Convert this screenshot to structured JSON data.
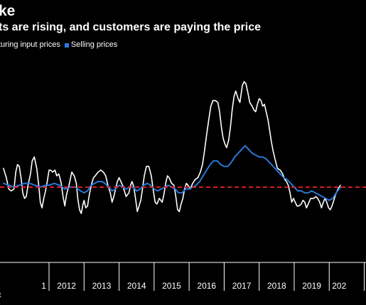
{
  "chart_data": {
    "type": "line",
    "title": "ke",
    "subtitle": "ts are rising, and customers are paying the price",
    "footer": "t",
    "legend_position": "top-left",
    "grid": false,
    "x_ticks": [
      "1",
      "2012",
      "2013",
      "2014",
      "2015",
      "2016",
      "2017",
      "2018",
      "2019",
      "202"
    ],
    "xlim": [
      2010.6,
      2021.05
    ],
    "ylim": [
      -4,
      7
    ],
    "reference_line": {
      "value": 0,
      "color": "#e8202a",
      "style": "dashed"
    },
    "colors": {
      "background": "#000000",
      "input": "#ffffff",
      "selling": "#2a7de1",
      "reference": "#e8202a"
    },
    "series": [
      {
        "name": "turing input prices",
        "color": "#ffffff",
        "points": [
          [
            2010.7,
            1.0
          ],
          [
            2010.78,
            0.5
          ],
          [
            2010.85,
            -0.1
          ],
          [
            2010.92,
            -0.2
          ],
          [
            2011.0,
            -0.1
          ],
          [
            2011.05,
            0.8
          ],
          [
            2011.1,
            1.2
          ],
          [
            2011.15,
            1.1
          ],
          [
            2011.2,
            0.5
          ],
          [
            2011.25,
            -0.3
          ],
          [
            2011.3,
            -0.6
          ],
          [
            2011.35,
            -0.5
          ],
          [
            2011.4,
            0.1
          ],
          [
            2011.47,
            0.7
          ],
          [
            2011.52,
            1.4
          ],
          [
            2011.58,
            1.6
          ],
          [
            2011.65,
            1.0
          ],
          [
            2011.7,
            0.2
          ],
          [
            2011.75,
            -0.8
          ],
          [
            2011.8,
            -1.1
          ],
          [
            2011.85,
            -0.6
          ],
          [
            2011.9,
            -0.2
          ],
          [
            2011.95,
            0.3
          ],
          [
            2012.0,
            0.9
          ],
          [
            2012.05,
            0.9
          ],
          [
            2012.1,
            0.8
          ],
          [
            2012.17,
            0.9
          ],
          [
            2012.22,
            0.6
          ],
          [
            2012.28,
            0.7
          ],
          [
            2012.35,
            0.2
          ],
          [
            2012.4,
            -0.5
          ],
          [
            2012.45,
            -1.0
          ],
          [
            2012.5,
            -0.4
          ],
          [
            2012.57,
            0.1
          ],
          [
            2012.65,
            0.8
          ],
          [
            2012.72,
            0.6
          ],
          [
            2012.78,
            0.2
          ],
          [
            2012.82,
            -0.6
          ],
          [
            2012.87,
            -1.2
          ],
          [
            2012.92,
            -1.4
          ],
          [
            2012.96,
            -1.0
          ],
          [
            2013.0,
            -0.7
          ],
          [
            2013.05,
            -1.1
          ],
          [
            2013.1,
            -1.0
          ],
          [
            2013.15,
            -0.4
          ],
          [
            2013.22,
            0.2
          ],
          [
            2013.27,
            0.5
          ],
          [
            2013.32,
            0.6
          ],
          [
            2013.4,
            0.8
          ],
          [
            2013.48,
            0.9
          ],
          [
            2013.55,
            0.8
          ],
          [
            2013.62,
            0.6
          ],
          [
            2013.68,
            0.1
          ],
          [
            2013.75,
            -0.3
          ],
          [
            2013.8,
            -0.8
          ],
          [
            2013.85,
            -0.5
          ],
          [
            2013.9,
            -0.1
          ],
          [
            2013.95,
            0.3
          ],
          [
            2014.0,
            0.5
          ],
          [
            2014.05,
            0.3
          ],
          [
            2014.1,
            0.1
          ],
          [
            2014.15,
            -0.2
          ],
          [
            2014.2,
            -0.5
          ],
          [
            2014.28,
            -0.3
          ],
          [
            2014.33,
            0.1
          ],
          [
            2014.37,
            0.3
          ],
          [
            2014.42,
            0.0
          ],
          [
            2014.47,
            -0.6
          ],
          [
            2014.52,
            -1.3
          ],
          [
            2014.57,
            -1.0
          ],
          [
            2014.62,
            -0.7
          ],
          [
            2014.66,
            -0.2
          ],
          [
            2014.72,
            0.6
          ],
          [
            2014.78,
            1.1
          ],
          [
            2014.85,
            1.1
          ],
          [
            2014.92,
            0.6
          ],
          [
            2014.97,
            -0.1
          ],
          [
            2015.03,
            -0.8
          ],
          [
            2015.08,
            -0.9
          ],
          [
            2015.15,
            -0.6
          ],
          [
            2015.23,
            -0.8
          ],
          [
            2015.28,
            -0.4
          ],
          [
            2015.33,
            0.2
          ],
          [
            2015.38,
            0.6
          ],
          [
            2015.43,
            0.5
          ],
          [
            2015.5,
            0.2
          ],
          [
            2015.57,
            0.1
          ],
          [
            2015.62,
            -0.5
          ],
          [
            2015.67,
            -1.2
          ],
          [
            2015.72,
            -1.3
          ],
          [
            2015.77,
            -0.9
          ],
          [
            2015.82,
            -0.6
          ],
          [
            2015.87,
            -0.1
          ],
          [
            2015.92,
            0.2
          ],
          [
            2015.97,
            0.1
          ],
          [
            2016.03,
            -0.1
          ],
          [
            2016.1,
            0.2
          ],
          [
            2016.17,
            0.4
          ],
          [
            2016.25,
            0.5
          ],
          [
            2016.32,
            0.8
          ],
          [
            2016.38,
            1.2
          ],
          [
            2016.43,
            1.8
          ],
          [
            2016.5,
            2.8
          ],
          [
            2016.57,
            3.7
          ],
          [
            2016.62,
            4.3
          ],
          [
            2016.68,
            4.6
          ],
          [
            2016.75,
            4.6
          ],
          [
            2016.82,
            4.5
          ],
          [
            2016.87,
            4.0
          ],
          [
            2016.92,
            3.2
          ],
          [
            2016.97,
            2.6
          ],
          [
            2017.02,
            2.3
          ],
          [
            2017.07,
            2.1
          ],
          [
            2017.13,
            2.5
          ],
          [
            2017.18,
            3.2
          ],
          [
            2017.23,
            4.1
          ],
          [
            2017.28,
            4.8
          ],
          [
            2017.33,
            5.1
          ],
          [
            2017.4,
            4.7
          ],
          [
            2017.45,
            4.5
          ],
          [
            2017.52,
            5.4
          ],
          [
            2017.57,
            5.6
          ],
          [
            2017.62,
            5.5
          ],
          [
            2017.68,
            5.0
          ],
          [
            2017.73,
            4.5
          ],
          [
            2017.8,
            4.3
          ],
          [
            2017.85,
            4.1
          ],
          [
            2017.9,
            4.0
          ],
          [
            2017.95,
            4.4
          ],
          [
            2018.0,
            4.7
          ],
          [
            2018.05,
            4.6
          ],
          [
            2018.1,
            4.3
          ],
          [
            2018.15,
            4.4
          ],
          [
            2018.2,
            4.0
          ],
          [
            2018.25,
            3.6
          ],
          [
            2018.3,
            3.0
          ],
          [
            2018.35,
            2.4
          ],
          [
            2018.4,
            1.9
          ],
          [
            2018.45,
            1.5
          ],
          [
            2018.52,
            1.0
          ],
          [
            2018.6,
            0.9
          ],
          [
            2018.67,
            0.7
          ],
          [
            2018.73,
            0.4
          ],
          [
            2018.78,
            0.3
          ],
          [
            2018.83,
            0.1
          ],
          [
            2018.88,
            -0.3
          ],
          [
            2018.93,
            -0.8
          ],
          [
            2018.98,
            -0.6
          ],
          [
            2019.03,
            -0.8
          ],
          [
            2019.08,
            -1.0
          ],
          [
            2019.13,
            -1.0
          ],
          [
            2019.2,
            -0.9
          ],
          [
            2019.25,
            -0.7
          ],
          [
            2019.3,
            -0.8
          ],
          [
            2019.35,
            -1.1
          ],
          [
            2019.4,
            -0.9
          ],
          [
            2019.47,
            -0.6
          ],
          [
            2019.55,
            -0.6
          ],
          [
            2019.62,
            -0.5
          ],
          [
            2019.67,
            -0.6
          ],
          [
            2019.73,
            -0.8
          ],
          [
            2019.78,
            -1.1
          ],
          [
            2019.83,
            -0.8
          ],
          [
            2019.88,
            -0.6
          ],
          [
            2019.93,
            -0.8
          ],
          [
            2019.98,
            -1.1
          ],
          [
            2020.03,
            -1.2
          ],
          [
            2020.08,
            -1.0
          ],
          [
            2020.13,
            -0.7
          ],
          [
            2020.18,
            -0.4
          ],
          [
            2020.25,
            -0.1
          ],
          [
            2020.32,
            0.1
          ]
        ]
      },
      {
        "name": "Selling prices",
        "color": "#2a7de1",
        "points": [
          [
            2010.7,
            0.2
          ],
          [
            2010.85,
            0.1
          ],
          [
            2011.0,
            0.0
          ],
          [
            2011.15,
            0.1
          ],
          [
            2011.3,
            0.2
          ],
          [
            2011.45,
            0.2
          ],
          [
            2011.6,
            0.1
          ],
          [
            2011.75,
            0.0
          ],
          [
            2011.9,
            0.1
          ],
          [
            2012.0,
            0.1
          ],
          [
            2012.15,
            0.2
          ],
          [
            2012.3,
            0.1
          ],
          [
            2012.45,
            -0.1
          ],
          [
            2012.6,
            0.0
          ],
          [
            2012.75,
            0.0
          ],
          [
            2012.9,
            -0.2
          ],
          [
            2013.0,
            -0.3
          ],
          [
            2013.1,
            -0.2
          ],
          [
            2013.2,
            0.1
          ],
          [
            2013.3,
            0.2
          ],
          [
            2013.4,
            0.3
          ],
          [
            2013.5,
            0.3
          ],
          [
            2013.6,
            0.2
          ],
          [
            2013.7,
            0.0
          ],
          [
            2013.8,
            -0.2
          ],
          [
            2013.9,
            -0.1
          ],
          [
            2014.0,
            0.1
          ],
          [
            2014.1,
            0.0
          ],
          [
            2014.2,
            -0.1
          ],
          [
            2014.3,
            0.0
          ],
          [
            2014.4,
            0.0
          ],
          [
            2014.5,
            -0.2
          ],
          [
            2014.6,
            -0.1
          ],
          [
            2014.7,
            0.1
          ],
          [
            2014.8,
            0.2
          ],
          [
            2014.9,
            0.1
          ],
          [
            2015.0,
            -0.1
          ],
          [
            2015.1,
            -0.2
          ],
          [
            2015.2,
            -0.1
          ],
          [
            2015.3,
            0.0
          ],
          [
            2015.4,
            0.1
          ],
          [
            2015.5,
            0.0
          ],
          [
            2015.6,
            -0.1
          ],
          [
            2015.7,
            -0.3
          ],
          [
            2015.8,
            -0.3
          ],
          [
            2015.9,
            -0.1
          ],
          [
            2016.0,
            -0.1
          ],
          [
            2016.1,
            0.0
          ],
          [
            2016.2,
            0.1
          ],
          [
            2016.3,
            0.3
          ],
          [
            2016.4,
            0.6
          ],
          [
            2016.5,
            0.9
          ],
          [
            2016.6,
            1.2
          ],
          [
            2016.7,
            1.4
          ],
          [
            2016.8,
            1.4
          ],
          [
            2016.9,
            1.2
          ],
          [
            2017.0,
            1.1
          ],
          [
            2017.1,
            1.1
          ],
          [
            2017.2,
            1.3
          ],
          [
            2017.3,
            1.6
          ],
          [
            2017.4,
            1.8
          ],
          [
            2017.5,
            2.0
          ],
          [
            2017.6,
            2.2
          ],
          [
            2017.7,
            2.0
          ],
          [
            2017.8,
            1.8
          ],
          [
            2017.9,
            1.7
          ],
          [
            2018.0,
            1.6
          ],
          [
            2018.1,
            1.6
          ],
          [
            2018.2,
            1.5
          ],
          [
            2018.3,
            1.3
          ],
          [
            2018.4,
            1.1
          ],
          [
            2018.5,
            0.9
          ],
          [
            2018.6,
            0.7
          ],
          [
            2018.7,
            0.5
          ],
          [
            2018.8,
            0.4
          ],
          [
            2018.9,
            0.2
          ],
          [
            2019.0,
            0.0
          ],
          [
            2019.1,
            -0.2
          ],
          [
            2019.2,
            -0.2
          ],
          [
            2019.3,
            -0.3
          ],
          [
            2019.4,
            -0.3
          ],
          [
            2019.5,
            -0.2
          ],
          [
            2019.6,
            -0.3
          ],
          [
            2019.7,
            -0.4
          ],
          [
            2019.8,
            -0.5
          ],
          [
            2019.9,
            -0.6
          ],
          [
            2020.0,
            -0.7
          ],
          [
            2020.1,
            -0.6
          ],
          [
            2020.2,
            -0.3
          ],
          [
            2020.32,
            0.0
          ]
        ]
      }
    ]
  }
}
